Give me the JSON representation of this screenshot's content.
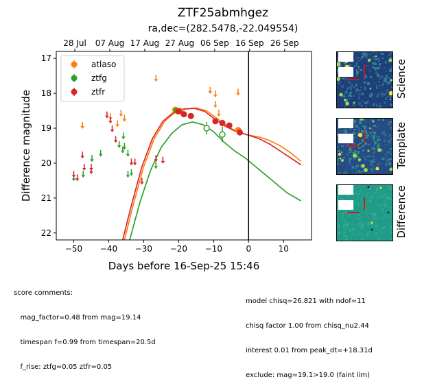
{
  "title": "ZTF25abmhgez",
  "subtitle": "ra,dec=(282.5478,-22.049554)",
  "chart_data": {
    "type": "scatter",
    "xlabel": "Days before 16-Sep-25 15:46",
    "ylabel": "Difference magnitude",
    "xlim": [
      -55,
      18
    ],
    "ylim": [
      22.2,
      16.8
    ],
    "x_ticks": [
      -50,
      -40,
      -30,
      -20,
      -10,
      0,
      10
    ],
    "y_ticks": [
      17,
      18,
      19,
      20,
      21,
      22
    ],
    "top_axis_ticks": [
      {
        "x": -49.7,
        "label": "28 Jul"
      },
      {
        "x": -39.7,
        "label": "07 Aug"
      },
      {
        "x": -29.7,
        "label": "17 Aug"
      },
      {
        "x": -19.7,
        "label": "27 Aug"
      },
      {
        "x": -9.7,
        "label": "06 Sep"
      },
      {
        "x": 0.3,
        "label": "16 Sep"
      },
      {
        "x": 10.3,
        "label": "26 Sep"
      }
    ],
    "vline_x": 0,
    "legend_position": "top-left",
    "series": [
      {
        "name": "atlaso",
        "color": "#ff7f0e",
        "detections": [
          {
            "x": -21.0,
            "y": 18.47,
            "err": 0.05
          },
          {
            "x": -19.5,
            "y": 18.5,
            "err": 0.05
          },
          {
            "x": -3.0,
            "y": 19.05,
            "err": 0.06
          }
        ],
        "upper_limits": [
          {
            "x": -47.5,
            "y": 18.9
          },
          {
            "x": -39.5,
            "y": 18.65
          },
          {
            "x": -37.5,
            "y": 18.85
          },
          {
            "x": -36.5,
            "y": 18.55
          },
          {
            "x": -35.5,
            "y": 18.7
          },
          {
            "x": -26.5,
            "y": 17.55
          },
          {
            "x": -11.0,
            "y": 17.9
          },
          {
            "x": -9.5,
            "y": 18.0
          },
          {
            "x": -9.5,
            "y": 18.3
          },
          {
            "x": -8.5,
            "y": 18.55
          },
          {
            "x": -7.5,
            "y": 18.85
          },
          {
            "x": -3.0,
            "y": 17.95
          }
        ]
      },
      {
        "name": "ztfg",
        "color": "#2ca02c",
        "detections": [
          {
            "x": -20.5,
            "y": 18.5,
            "err": 0.06
          }
        ],
        "open_points": [
          {
            "x": -12.0,
            "y": 19.0,
            "err": 0.18
          },
          {
            "x": -7.5,
            "y": 19.18,
            "err": 0.22
          }
        ],
        "upper_limits": [
          {
            "x": -50.0,
            "y": 20.4
          },
          {
            "x": -47.3,
            "y": 20.3
          },
          {
            "x": -44.8,
            "y": 19.85
          },
          {
            "x": -42.3,
            "y": 19.7
          },
          {
            "x": -37.0,
            "y": 19.45
          },
          {
            "x": -36.0,
            "y": 19.6
          },
          {
            "x": -35.5,
            "y": 19.5
          },
          {
            "x": -34.5,
            "y": 19.7
          },
          {
            "x": -35.8,
            "y": 19.2
          },
          {
            "x": -34.5,
            "y": 20.3
          },
          {
            "x": -33.5,
            "y": 20.25
          },
          {
            "x": -26.5,
            "y": 20.05
          }
        ]
      },
      {
        "name": "ztfr",
        "color": "#d62728",
        "detections": [
          {
            "x": -20.0,
            "y": 18.52,
            "err": 0.05
          },
          {
            "x": -18.5,
            "y": 18.6,
            "err": 0.05
          },
          {
            "x": -16.5,
            "y": 18.65,
            "err": 0.05
          },
          {
            "x": -9.5,
            "y": 18.8,
            "err": 0.08
          },
          {
            "x": -7.5,
            "y": 18.85,
            "err": 0.08
          },
          {
            "x": -5.5,
            "y": 18.92,
            "err": 0.08
          },
          {
            "x": -2.5,
            "y": 19.12,
            "err": 0.06
          }
        ],
        "upper_limits": [
          {
            "x": -50.0,
            "y": 20.3
          },
          {
            "x": -49.0,
            "y": 20.4
          },
          {
            "x": -47.5,
            "y": 19.75
          },
          {
            "x": -47.0,
            "y": 20.1
          },
          {
            "x": -45.0,
            "y": 20.1
          },
          {
            "x": -45.0,
            "y": 20.2
          },
          {
            "x": -40.5,
            "y": 18.6
          },
          {
            "x": -39.5,
            "y": 18.75
          },
          {
            "x": -39.0,
            "y": 19.0
          },
          {
            "x": -38.0,
            "y": 19.3
          },
          {
            "x": -33.5,
            "y": 19.95
          },
          {
            "x": -32.5,
            "y": 19.95
          },
          {
            "x": -30.5,
            "y": 20.5
          },
          {
            "x": -26.5,
            "y": 19.85
          },
          {
            "x": -24.5,
            "y": 19.9
          }
        ]
      }
    ],
    "model_curves": [
      {
        "name": "atlaso",
        "color": "#ff7f0e",
        "points": [
          [
            -35.5,
            22.2
          ],
          [
            -33,
            21.2
          ],
          [
            -30,
            20.1
          ],
          [
            -27,
            19.3
          ],
          [
            -24,
            18.8
          ],
          [
            -21,
            18.55
          ],
          [
            -18,
            18.45
          ],
          [
            -15,
            18.42
          ],
          [
            -12,
            18.5
          ],
          [
            -9,
            18.72
          ],
          [
            -6,
            18.95
          ],
          [
            -3,
            19.12
          ],
          [
            0,
            19.2
          ],
          [
            3,
            19.25
          ],
          [
            6,
            19.35
          ],
          [
            9,
            19.5
          ],
          [
            12,
            19.7
          ],
          [
            15,
            19.95
          ]
        ]
      },
      {
        "name": "ztfg",
        "color": "#2ca02c",
        "points": [
          [
            -34,
            22.2
          ],
          [
            -31,
            21.1
          ],
          [
            -28,
            20.2
          ],
          [
            -25,
            19.55
          ],
          [
            -22,
            19.15
          ],
          [
            -19,
            18.9
          ],
          [
            -16,
            18.82
          ],
          [
            -13,
            18.9
          ],
          [
            -10,
            19.1
          ],
          [
            -7,
            19.4
          ],
          [
            -4,
            19.65
          ],
          [
            -1,
            19.85
          ],
          [
            2,
            20.1
          ],
          [
            5,
            20.35
          ],
          [
            8,
            20.6
          ],
          [
            11,
            20.85
          ],
          [
            15,
            21.08
          ]
        ]
      },
      {
        "name": "ztfr",
        "color": "#d62728",
        "points": [
          [
            -36,
            22.2
          ],
          [
            -33.5,
            21.2
          ],
          [
            -30.5,
            20.1
          ],
          [
            -27.5,
            19.3
          ],
          [
            -24.5,
            18.8
          ],
          [
            -21.5,
            18.55
          ],
          [
            -18.5,
            18.45
          ],
          [
            -15.5,
            18.43
          ],
          [
            -12.5,
            18.52
          ],
          [
            -9.5,
            18.75
          ],
          [
            -6.5,
            18.95
          ],
          [
            -3.5,
            19.1
          ],
          [
            0,
            19.2
          ],
          [
            3,
            19.3
          ],
          [
            6,
            19.45
          ],
          [
            9,
            19.65
          ],
          [
            12,
            19.85
          ],
          [
            15,
            20.05
          ]
        ]
      }
    ]
  },
  "score_comments": {
    "left": [
      "score comments:",
      "   mag_factor=0.48 from mag=19.14",
      "   timespan f=0.99 from timespan=20.5d",
      "   f_rise: ztfg=0.05 ztfr=0.05"
    ],
    "right": [
      "model chisq=26.821 with ndof=11",
      "chisq factor 1.00 from chisq_nu2.44",
      "interest 0.01 from peak_dt=+18.31d",
      "exclude: mag=19.1>19.0 (faint lim)"
    ]
  },
  "stamps": [
    {
      "label": "Science",
      "palette": [
        "#1f3f7a",
        "#2a5d8a",
        "#2f7f8e"
      ]
    },
    {
      "label": "Template",
      "palette": [
        "#274b85",
        "#2f6a8c",
        "#2d8a8a"
      ]
    },
    {
      "label": "Difference",
      "palette": [
        "#1f9b8a",
        "#27a08a",
        "#35a88a"
      ]
    }
  ]
}
